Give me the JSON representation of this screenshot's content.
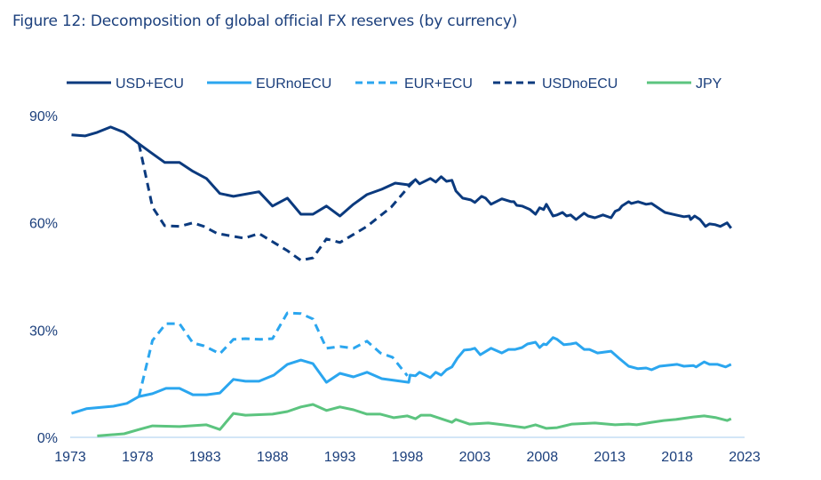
{
  "chart_data": {
    "type": "line",
    "title": "Figure 12: Decomposition of global official FX reserves (by currency)",
    "xlabel": "",
    "ylabel": "",
    "xlim": [
      1973,
      2023
    ],
    "ylim": [
      0,
      90
    ],
    "x_ticks": [
      "1973",
      "1978",
      "1983",
      "1988",
      "1993",
      "1998",
      "2003",
      "2008",
      "2013",
      "2018",
      "2023"
    ],
    "y_ticks": [
      "0%",
      "30%",
      "60%",
      "90%"
    ],
    "grid": false,
    "legend_position": "top",
    "series": [
      {
        "name": "USD+ECU",
        "color": "#0b3a7e",
        "dash": false,
        "points": [
          [
            1973.1,
            84.6
          ],
          [
            1974.1,
            84.3
          ],
          [
            1975.0,
            85.3
          ],
          [
            1976.0,
            86.8
          ],
          [
            1977.0,
            85.3
          ],
          [
            1978.1,
            82.1
          ],
          [
            1979.0,
            79.6
          ],
          [
            1980.0,
            76.9
          ],
          [
            1981.1,
            76.9
          ],
          [
            1982.1,
            74.4
          ],
          [
            1983.1,
            72.4
          ],
          [
            1984.1,
            68.2
          ],
          [
            1985.1,
            67.4
          ],
          [
            1987.0,
            68.7
          ],
          [
            1988.0,
            64.7
          ],
          [
            1989.1,
            66.9
          ],
          [
            1990.1,
            62.4
          ],
          [
            1991.0,
            62.4
          ],
          [
            1992.0,
            64.7
          ],
          [
            1993.0,
            61.9
          ],
          [
            1994.0,
            65.2
          ],
          [
            1995.0,
            67.9
          ],
          [
            1996.1,
            69.4
          ],
          [
            1997.1,
            71.1
          ],
          [
            1998.1,
            70.6
          ],
          [
            1998.6,
            72.1
          ],
          [
            1998.9,
            70.9
          ],
          [
            1999.7,
            72.4
          ],
          [
            2000.1,
            71.4
          ],
          [
            2000.5,
            72.9
          ],
          [
            2000.9,
            71.6
          ],
          [
            2001.3,
            71.9
          ],
          [
            2001.6,
            68.9
          ],
          [
            2002.1,
            66.9
          ],
          [
            2002.7,
            66.4
          ],
          [
            2003.0,
            65.7
          ],
          [
            2003.5,
            67.4
          ],
          [
            2003.8,
            66.9
          ],
          [
            2004.2,
            65.2
          ],
          [
            2005.0,
            66.7
          ],
          [
            2005.7,
            65.9
          ],
          [
            2005.9,
            65.9
          ],
          [
            2006.1,
            64.9
          ],
          [
            2006.5,
            64.7
          ],
          [
            2007.1,
            63.7
          ],
          [
            2007.5,
            62.4
          ],
          [
            2007.8,
            64.2
          ],
          [
            2008.1,
            63.7
          ],
          [
            2008.3,
            65.2
          ],
          [
            2008.8,
            61.9
          ],
          [
            2009.1,
            62.2
          ],
          [
            2009.5,
            62.9
          ],
          [
            2009.8,
            61.9
          ],
          [
            2010.1,
            62.2
          ],
          [
            2010.5,
            60.9
          ],
          [
            2011.1,
            62.7
          ],
          [
            2011.4,
            61.9
          ],
          [
            2011.9,
            61.4
          ],
          [
            2012.5,
            62.2
          ],
          [
            2013.1,
            61.4
          ],
          [
            2013.4,
            63.2
          ],
          [
            2013.7,
            63.7
          ],
          [
            2013.9,
            64.7
          ],
          [
            2014.4,
            65.9
          ],
          [
            2014.6,
            65.4
          ],
          [
            2015.1,
            65.9
          ],
          [
            2015.7,
            65.2
          ],
          [
            2016.1,
            65.4
          ],
          [
            2016.7,
            63.9
          ],
          [
            2017.1,
            62.9
          ],
          [
            2017.9,
            62.2
          ],
          [
            2018.5,
            61.7
          ],
          [
            2018.9,
            61.9
          ],
          [
            2019.0,
            60.9
          ],
          [
            2019.3,
            61.9
          ],
          [
            2019.7,
            60.9
          ],
          [
            2020.1,
            59.0
          ],
          [
            2020.4,
            59.7
          ],
          [
            2020.8,
            59.5
          ],
          [
            2021.2,
            59.0
          ],
          [
            2021.7,
            60.0
          ],
          [
            2022.0,
            58.5
          ]
        ]
      },
      {
        "name": "EURnoECU",
        "color": "#2ba6ef",
        "dash": false,
        "points": [
          [
            1973.1,
            6.7
          ],
          [
            1974.2,
            8.0
          ],
          [
            1976.2,
            8.7
          ],
          [
            1977.2,
            9.5
          ],
          [
            1978.1,
            11.4
          ],
          [
            1979.1,
            12.2
          ],
          [
            1980.1,
            13.7
          ],
          [
            1981.1,
            13.7
          ],
          [
            1982.1,
            11.9
          ],
          [
            1983.1,
            11.9
          ],
          [
            1984.1,
            12.4
          ],
          [
            1985.1,
            16.2
          ],
          [
            1986.0,
            15.7
          ],
          [
            1987.0,
            15.7
          ],
          [
            1988.1,
            17.4
          ],
          [
            1989.1,
            20.4
          ],
          [
            1990.1,
            21.6
          ],
          [
            1991.0,
            20.6
          ],
          [
            1992.0,
            15.4
          ],
          [
            1993.0,
            17.9
          ],
          [
            1994.0,
            16.9
          ],
          [
            1995.0,
            18.2
          ],
          [
            1996.1,
            16.4
          ],
          [
            1998.1,
            15.4
          ],
          [
            1998.2,
            17.4
          ],
          [
            1998.6,
            17.2
          ],
          [
            1998.9,
            18.2
          ],
          [
            1999.7,
            16.7
          ],
          [
            2000.1,
            18.2
          ],
          [
            2000.5,
            17.4
          ],
          [
            2000.9,
            18.9
          ],
          [
            2001.3,
            19.7
          ],
          [
            2001.7,
            22.1
          ],
          [
            2002.2,
            24.4
          ],
          [
            2002.7,
            24.6
          ],
          [
            2003.0,
            24.9
          ],
          [
            2003.4,
            23.1
          ],
          [
            2004.2,
            24.9
          ],
          [
            2005.0,
            23.6
          ],
          [
            2005.5,
            24.6
          ],
          [
            2006.0,
            24.6
          ],
          [
            2006.5,
            25.1
          ],
          [
            2006.9,
            26.1
          ],
          [
            2007.5,
            26.6
          ],
          [
            2007.8,
            25.1
          ],
          [
            2008.1,
            26.1
          ],
          [
            2008.3,
            25.9
          ],
          [
            2008.8,
            27.9
          ],
          [
            2009.1,
            27.4
          ],
          [
            2009.6,
            25.9
          ],
          [
            2010.1,
            26.1
          ],
          [
            2010.5,
            26.4
          ],
          [
            2011.1,
            24.6
          ],
          [
            2011.5,
            24.6
          ],
          [
            2012.1,
            23.6
          ],
          [
            2013.1,
            24.1
          ],
          [
            2013.7,
            22.1
          ],
          [
            2014.4,
            19.9
          ],
          [
            2015.1,
            19.2
          ],
          [
            2015.7,
            19.4
          ],
          [
            2016.1,
            18.9
          ],
          [
            2016.7,
            19.9
          ],
          [
            2018.0,
            20.4
          ],
          [
            2018.5,
            19.9
          ],
          [
            2019.2,
            20.1
          ],
          [
            2019.4,
            19.7
          ],
          [
            2020.0,
            21.1
          ],
          [
            2020.4,
            20.4
          ],
          [
            2021.0,
            20.4
          ],
          [
            2021.6,
            19.7
          ],
          [
            2022.0,
            20.4
          ]
        ]
      },
      {
        "name": "EUR+ECU",
        "color": "#2ba6ef",
        "dash": true,
        "points": [
          [
            1978.1,
            11.4
          ],
          [
            1979.1,
            27.1
          ],
          [
            1980.1,
            31.8
          ],
          [
            1981.1,
            31.8
          ],
          [
            1982.1,
            26.4
          ],
          [
            1982.9,
            25.6
          ],
          [
            1984.1,
            23.4
          ],
          [
            1985.1,
            27.4
          ],
          [
            1986.0,
            27.6
          ],
          [
            1987.1,
            27.4
          ],
          [
            1988.0,
            27.6
          ],
          [
            1989.1,
            34.8
          ],
          [
            1990.1,
            34.6
          ],
          [
            1991.0,
            33.1
          ],
          [
            1992.0,
            24.9
          ],
          [
            1993.0,
            25.4
          ],
          [
            1994.0,
            24.9
          ],
          [
            1995.0,
            26.9
          ],
          [
            1996.0,
            23.6
          ],
          [
            1996.9,
            22.4
          ],
          [
            1998.0,
            17.2
          ]
        ]
      },
      {
        "name": "USDnoECU",
        "color": "#0b3a7e",
        "dash": true,
        "points": [
          [
            1978.1,
            82.1
          ],
          [
            1979.1,
            64.4
          ],
          [
            1980.0,
            59.2
          ],
          [
            1981.1,
            59.0
          ],
          [
            1982.1,
            60.0
          ],
          [
            1982.9,
            59.0
          ],
          [
            1983.9,
            57.0
          ],
          [
            1985.9,
            55.7
          ],
          [
            1987.0,
            57.0
          ],
          [
            1988.1,
            54.5
          ],
          [
            1989.1,
            52.2
          ],
          [
            1990.1,
            49.5
          ],
          [
            1991.0,
            50.2
          ],
          [
            1992.0,
            55.5
          ],
          [
            1993.0,
            54.5
          ],
          [
            1995.0,
            59.0
          ],
          [
            1996.8,
            64.4
          ],
          [
            1998.1,
            70.1
          ],
          [
            1998.6,
            72.1
          ]
        ]
      },
      {
        "name": "JPY",
        "color": "#5cc47f",
        "dash": false,
        "points": [
          [
            1975.0,
            0.4
          ],
          [
            1977.0,
            1.0
          ],
          [
            1978.1,
            2.2
          ],
          [
            1979.1,
            3.2
          ],
          [
            1981.1,
            3.0
          ],
          [
            1983.1,
            3.5
          ],
          [
            1984.1,
            2.2
          ],
          [
            1985.1,
            6.7
          ],
          [
            1986.0,
            6.2
          ],
          [
            1988.0,
            6.5
          ],
          [
            1989.1,
            7.2
          ],
          [
            1990.1,
            8.5
          ],
          [
            1991.0,
            9.2
          ],
          [
            1992.0,
            7.5
          ],
          [
            1993.0,
            8.5
          ],
          [
            1994.0,
            7.7
          ],
          [
            1995.0,
            6.5
          ],
          [
            1996.0,
            6.5
          ],
          [
            1997.0,
            5.5
          ],
          [
            1998.0,
            6.0
          ],
          [
            1998.6,
            5.2
          ],
          [
            1999.0,
            6.2
          ],
          [
            1999.7,
            6.2
          ],
          [
            2000.1,
            5.7
          ],
          [
            2001.3,
            4.2
          ],
          [
            2001.6,
            5.0
          ],
          [
            2002.6,
            3.7
          ],
          [
            2004.0,
            4.0
          ],
          [
            2005.1,
            3.5
          ],
          [
            2006.7,
            2.7
          ],
          [
            2007.5,
            3.5
          ],
          [
            2008.3,
            2.5
          ],
          [
            2009.1,
            2.7
          ],
          [
            2010.2,
            3.7
          ],
          [
            2011.9,
            4.0
          ],
          [
            2013.4,
            3.5
          ],
          [
            2014.4,
            3.7
          ],
          [
            2015.0,
            3.5
          ],
          [
            2016.1,
            4.2
          ],
          [
            2017.0,
            4.7
          ],
          [
            2017.9,
            5.0
          ],
          [
            2019.2,
            5.7
          ],
          [
            2020.0,
            6.0
          ],
          [
            2020.9,
            5.5
          ],
          [
            2021.7,
            4.7
          ],
          [
            2022.0,
            5.2
          ]
        ]
      }
    ]
  }
}
